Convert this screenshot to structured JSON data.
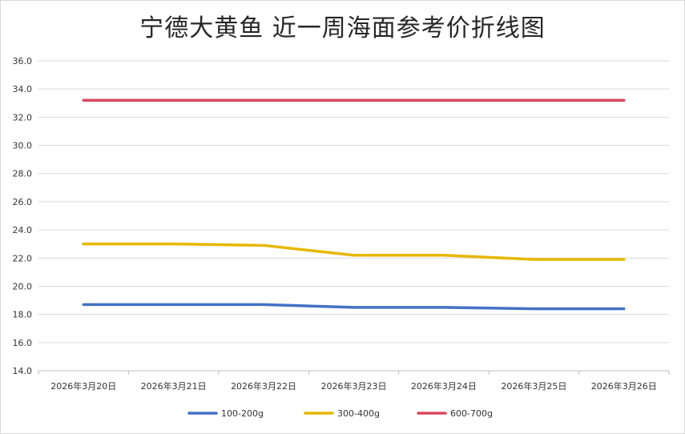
{
  "chart_data": {
    "type": "line",
    "title": "宁德大黄鱼 近一周海面参考价折线图",
    "xlabel": "",
    "ylabel": "",
    "categories": [
      "2026年3月20日",
      "2026年3月21日",
      "2026年3月22日",
      "2026年3月23日",
      "2026年3月24日",
      "2026年3月25日",
      "2026年3月26日"
    ],
    "ylim": [
      14.0,
      36.0
    ],
    "yticks": [
      "14.0",
      "16.0",
      "18.0",
      "20.0",
      "22.0",
      "24.0",
      "26.0",
      "28.0",
      "30.0",
      "32.0",
      "34.0",
      "36.0"
    ],
    "grid": true,
    "legend_position": "bottom",
    "series": [
      {
        "name": "100-200g",
        "color": "#4472c4",
        "values": [
          18.7,
          18.7,
          18.7,
          18.5,
          18.5,
          18.4,
          18.4
        ]
      },
      {
        "name": "300-400g",
        "color": "#e6b800",
        "values": [
          23.0,
          23.0,
          22.9,
          22.2,
          22.2,
          21.9,
          21.9
        ]
      },
      {
        "name": "600-700g",
        "color": "#d9485f",
        "values": [
          33.2,
          33.2,
          33.2,
          33.2,
          33.2,
          33.2,
          33.2
        ]
      }
    ]
  }
}
